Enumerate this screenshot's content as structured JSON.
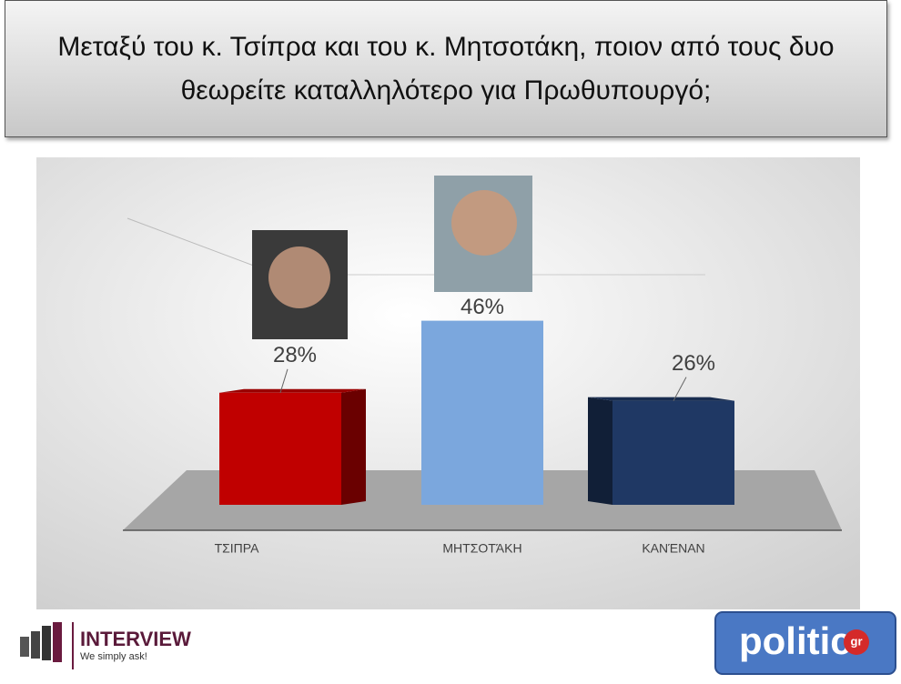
{
  "chart_data": {
    "type": "bar3d",
    "title": "Μεταξύ του κ. Τσίπρα και του κ. Μητσοτάκη, ποιον από τους δυο θεωρείτε καταλληλότερο για Πρωθυπουργό;",
    "categories": [
      "ΤΣΙΠΡΑ",
      "ΜΗΤΣΟΤΆΚΗ",
      "ΚΑΝΈΝΑΝ"
    ],
    "values": [
      28,
      46,
      26
    ],
    "value_labels": [
      "28%",
      "46%",
      "26%"
    ],
    "colors": [
      "#c00000",
      "#7ba7dd",
      "#1f3864"
    ]
  },
  "footer": {
    "left_logo": "INTERVIEW",
    "left_tagline": "We simply ask!",
    "right_logo": "politic",
    "right_badge": "gr"
  }
}
